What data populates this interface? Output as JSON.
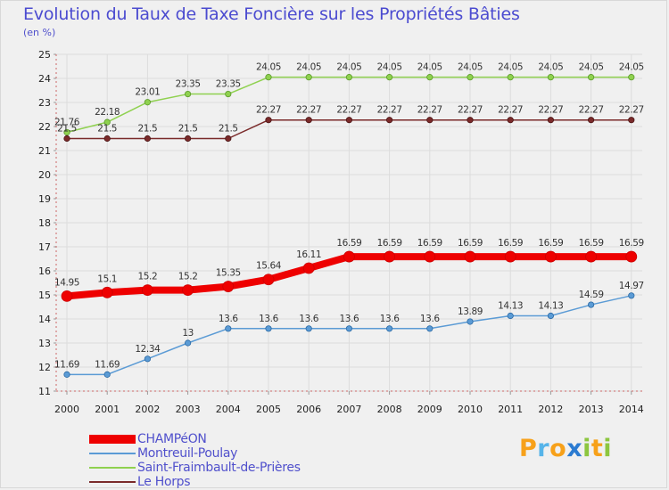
{
  "chart_data": {
    "type": "line",
    "title": "Evolution du Taux de Taxe Foncière sur les Propriétés Bâties",
    "ylabel": "(en %)",
    "xlabel": "",
    "ylim": [
      11,
      25
    ],
    "yticks": [
      11,
      12,
      13,
      14,
      15,
      16,
      17,
      18,
      19,
      20,
      21,
      22,
      23,
      24,
      25
    ],
    "x": [
      "2000",
      "2001",
      "2002",
      "2003",
      "2004",
      "2005",
      "2006",
      "2007",
      "2008",
      "2009",
      "2010",
      "2011",
      "2012",
      "2013",
      "2014"
    ],
    "grid": true,
    "series": [
      {
        "name": "CHAMPéON",
        "color": "#ee0000",
        "values": [
          14.95,
          15.1,
          15.2,
          15.2,
          15.35,
          15.64,
          16.11,
          16.59,
          16.59,
          16.59,
          16.59,
          16.59,
          16.59,
          16.59,
          16.59
        ],
        "labels": [
          "14.95",
          "15.1",
          "15.2",
          "15.2",
          "15.35",
          "15.64",
          "16.11",
          "16.59",
          "16.59",
          "16.59",
          "16.59",
          "16.59",
          "16.59",
          "16.59",
          "16.59"
        ]
      },
      {
        "name": "Montreuil-Poulay",
        "color": "#5b9bd5",
        "values": [
          11.69,
          11.69,
          12.34,
          13,
          13.6,
          13.6,
          13.6,
          13.6,
          13.6,
          13.6,
          13.89,
          14.13,
          14.13,
          14.59,
          14.97
        ],
        "labels": [
          "11.69",
          "11.69",
          "12.34",
          "13",
          "13.6",
          "13.6",
          "13.6",
          "13.6",
          "13.6",
          "13.6",
          "13.89",
          "14.13",
          "14.13",
          "14.59",
          "14.97"
        ]
      },
      {
        "name": "Saint-Fraimbault-de-Prières",
        "color": "#8fd14f",
        "values": [
          21.76,
          22.18,
          23.01,
          23.35,
          23.35,
          24.05,
          24.05,
          24.05,
          24.05,
          24.05,
          24.05,
          24.05,
          24.05,
          24.05,
          24.05
        ],
        "labels": [
          "21.76",
          "22.18",
          "23.01",
          "23.35",
          "23.35",
          "24.05",
          "24.05",
          "24.05",
          "24.05",
          "24.05",
          "24.05",
          "24.05",
          "24.05",
          "24.05",
          "24.05"
        ]
      },
      {
        "name": "Le Horps",
        "color": "#7a2a2a",
        "values": [
          21.5,
          21.5,
          21.5,
          21.5,
          21.5,
          22.27,
          22.27,
          22.27,
          22.27,
          22.27,
          22.27,
          22.27,
          22.27,
          22.27,
          22.27
        ],
        "labels": [
          "21.5",
          "21.5",
          "21.5",
          "21.5",
          "21.5",
          "22.27",
          "22.27",
          "22.27",
          "22.27",
          "22.27",
          "22.27",
          "22.27",
          "22.27",
          "22.27",
          "22.27"
        ]
      }
    ]
  },
  "logo": {
    "letters": [
      "P",
      "r",
      "o",
      "x",
      "i",
      "t",
      "i"
    ],
    "colors": [
      "#f7a11a",
      "#56b4e9",
      "#f7a11a",
      "#2b7bd1",
      "#8dc63f",
      "#f7a11a",
      "#8dc63f"
    ]
  }
}
